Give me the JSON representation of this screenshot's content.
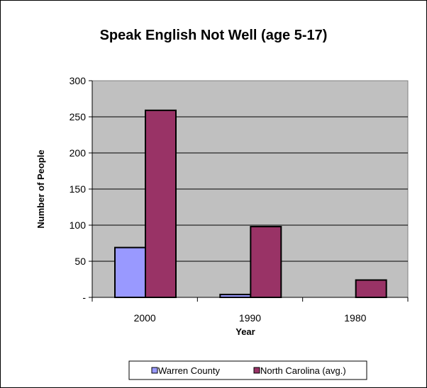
{
  "chart_data": {
    "type": "bar",
    "title": "Speak English Not Well (age 5-17)",
    "xlabel": "Year",
    "ylabel": "Number of People",
    "categories": [
      "2000",
      "1990",
      "1980"
    ],
    "series": [
      {
        "name": "Warren County",
        "values": [
          69,
          4,
          0
        ],
        "color": "#9999ff"
      },
      {
        "name": "North Carolina (avg.)",
        "values": [
          259,
          98,
          24
        ],
        "color": "#993366"
      }
    ],
    "ylim": [
      0,
      300
    ],
    "yticks": [
      0,
      50,
      100,
      150,
      200,
      250,
      300
    ],
    "ytick_labels": [
      "-",
      "50",
      "100",
      "150",
      "200",
      "250",
      "300"
    ],
    "plot_background": "#c0c0c0",
    "grid": true,
    "legend_position": "bottom"
  }
}
